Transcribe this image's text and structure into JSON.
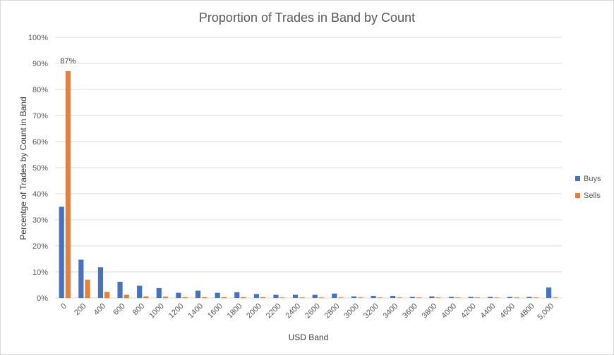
{
  "chart_data": {
    "type": "bar",
    "title": "Proportion of Trades in Band by Count",
    "xlabel": "USD Band",
    "ylabel": "Percentge of Trades by Count in Band",
    "ylim": [
      0,
      100
    ],
    "y_ticks": [
      "0%",
      "10%",
      "20%",
      "30%",
      "40%",
      "50%",
      "60%",
      "70%",
      "80%",
      "90%",
      "100%"
    ],
    "grid": true,
    "legend_position": "right",
    "categories": [
      "0",
      "200",
      "400",
      "600",
      "800",
      "1000",
      "1200",
      "1400",
      "1600",
      "1800",
      "2000",
      "2200",
      "2400",
      "2600",
      "2800",
      "3000",
      "3200",
      "3400",
      "3600",
      "3800",
      "4000",
      "4200",
      "4400",
      "4600",
      "4800",
      "5,000"
    ],
    "series": [
      {
        "name": "Buys",
        "color": "#4472c4",
        "values": [
          35,
          14.7,
          11.8,
          6.2,
          4.7,
          3.8,
          2,
          2.8,
          2,
          2.2,
          1.5,
          1.2,
          1.2,
          1.2,
          1.7,
          0.6,
          0.8,
          0.8,
          0.4,
          0.6,
          0.4,
          0.4,
          0.4,
          0.4,
          0.4,
          4
        ]
      },
      {
        "name": "Sells",
        "color": "#ed7d31",
        "values": [
          87,
          7,
          2.3,
          1.2,
          0.6,
          0.5,
          0.3,
          0.3,
          0.3,
          0.3,
          0.3,
          0.2,
          0.2,
          0.2,
          0.2,
          0.2,
          0.2,
          0.2,
          0.2,
          0.2,
          0.2,
          0.2,
          0.2,
          0.2,
          0.2,
          0.2
        ]
      }
    ],
    "annotations": [
      {
        "series": "Sells",
        "category": "0",
        "text": "87%"
      }
    ]
  }
}
